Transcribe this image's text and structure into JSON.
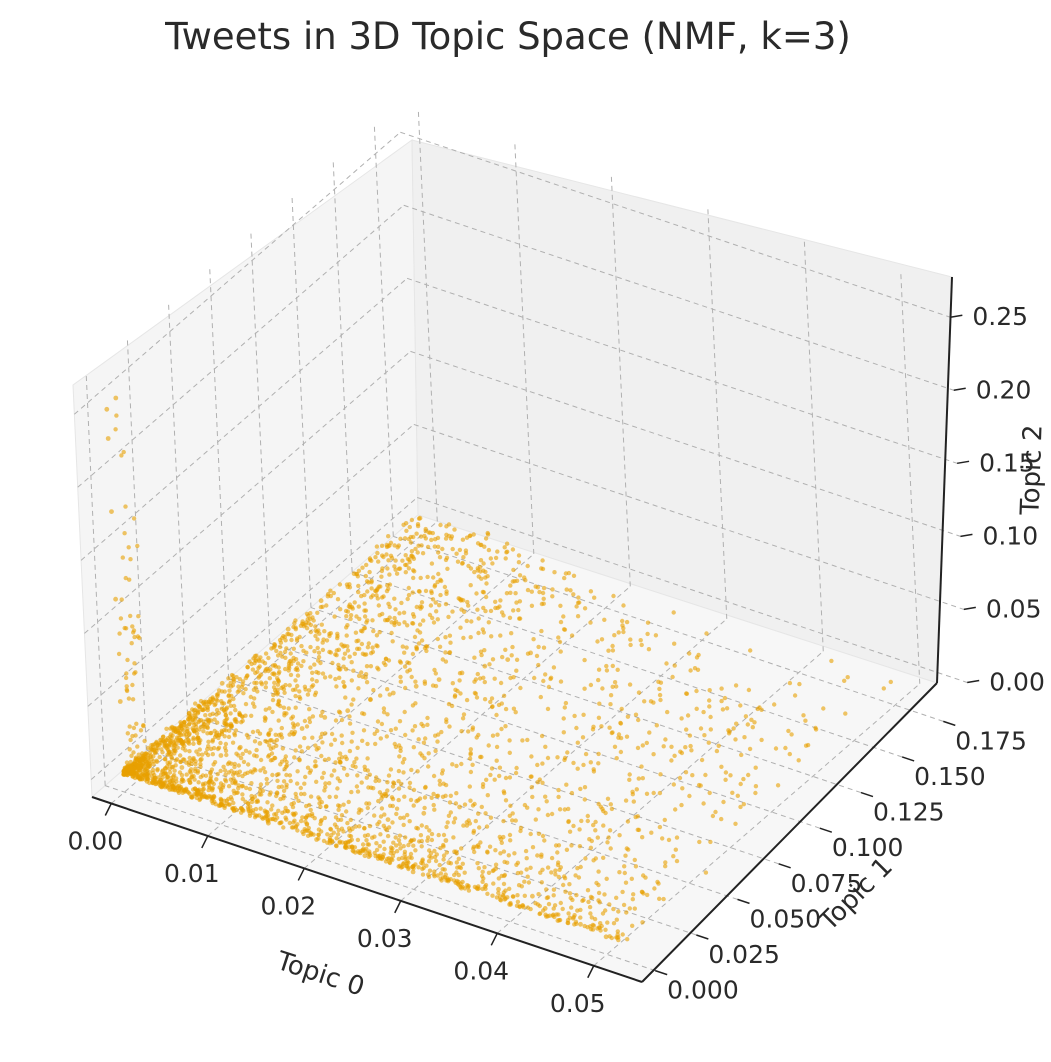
{
  "chart_data": {
    "type": "scatter",
    "projection": "3d",
    "title": "Tweets in 3D Topic Space (NMF, k=3)",
    "xlabel": "Topic 0",
    "ylabel": "Topic 1",
    "zlabel": "Topic 2",
    "xlim": [
      -0.002,
      0.055
    ],
    "ylim": [
      -0.008,
      0.19
    ],
    "zlim": [
      -0.012,
      0.27
    ],
    "x_ticks": [
      0.0,
      0.01,
      0.02,
      0.03,
      0.04,
      0.05
    ],
    "x_tick_labels": [
      "0.00",
      "0.01",
      "0.02",
      "0.03",
      "0.04",
      "0.05"
    ],
    "y_ticks": [
      0.0,
      0.025,
      0.05,
      0.075,
      0.1,
      0.125,
      0.15,
      0.175
    ],
    "y_tick_labels": [
      "0.000",
      "0.025",
      "0.050",
      "0.075",
      "0.100",
      "0.125",
      "0.150",
      "0.175"
    ],
    "z_ticks": [
      0.0,
      0.05,
      0.1,
      0.15,
      0.2,
      0.25
    ],
    "z_tick_labels": [
      "0.00",
      "0.05",
      "0.10",
      "0.15",
      "0.20",
      "0.25"
    ],
    "grid": true,
    "grid_style": "dashed",
    "marker_color": "#E8A000",
    "marker_alpha": 0.6,
    "pane_colors": {
      "left": "#f5f5f5",
      "back": "#f0f0f0",
      "floor": "#f7f7f7"
    },
    "series": [
      {
        "description_of_shape": "dense wedge of points near origin spreading along Topic 0 and Topic 1, with a sparse spike along Topic 2",
        "points": [
          [
            0.0,
            0.0,
            0.0
          ],
          [
            0.001,
            0.002,
            0.001
          ],
          [
            0.002,
            0.004,
            0.002
          ],
          [
            0.003,
            0.008,
            0.003
          ],
          [
            0.004,
            0.012,
            0.002
          ],
          [
            0.005,
            0.018,
            0.004
          ],
          [
            0.006,
            0.024,
            0.003
          ],
          [
            0.007,
            0.03,
            0.005
          ],
          [
            0.008,
            0.036,
            0.004
          ],
          [
            0.009,
            0.042,
            0.006
          ],
          [
            0.01,
            0.05,
            0.005
          ],
          [
            0.011,
            0.058,
            0.007
          ],
          [
            0.012,
            0.066,
            0.006
          ],
          [
            0.013,
            0.074,
            0.008
          ],
          [
            0.014,
            0.082,
            0.007
          ],
          [
            0.015,
            0.09,
            0.006
          ],
          [
            0.016,
            0.098,
            0.005
          ],
          [
            0.017,
            0.106,
            0.004
          ],
          [
            0.018,
            0.114,
            0.003
          ],
          [
            0.019,
            0.122,
            0.002
          ],
          [
            0.02,
            0.13,
            0.001
          ],
          [
            0.0,
            0.02,
            0.002
          ],
          [
            0.0,
            0.04,
            0.003
          ],
          [
            0.0,
            0.06,
            0.004
          ],
          [
            0.0,
            0.08,
            0.003
          ],
          [
            0.0,
            0.1,
            0.002
          ],
          [
            0.0,
            0.12,
            0.002
          ],
          [
            0.0,
            0.14,
            0.001
          ],
          [
            0.0,
            0.16,
            0.001
          ],
          [
            0.0,
            0.18,
            0.0
          ],
          [
            0.005,
            0.0,
            0.001
          ],
          [
            0.01,
            0.0,
            0.001
          ],
          [
            0.015,
            0.0,
            0.0
          ],
          [
            0.02,
            0.0,
            0.0
          ],
          [
            0.025,
            0.0,
            0.0
          ],
          [
            0.03,
            0.0,
            0.0
          ],
          [
            0.035,
            0.0,
            0.0
          ],
          [
            0.04,
            0.0,
            0.0
          ],
          [
            0.045,
            0.0,
            0.0
          ],
          [
            0.05,
            0.0,
            0.0
          ],
          [
            0.022,
            0.01,
            0.002
          ],
          [
            0.024,
            0.02,
            0.003
          ],
          [
            0.026,
            0.03,
            0.002
          ],
          [
            0.028,
            0.04,
            0.001
          ],
          [
            0.03,
            0.02,
            0.002
          ],
          [
            0.032,
            0.01,
            0.001
          ],
          [
            0.034,
            0.03,
            0.002
          ],
          [
            0.036,
            0.015,
            0.001
          ],
          [
            0.038,
            0.005,
            0.001
          ],
          [
            0.041,
            0.008,
            0.0
          ],
          [
            0.043,
            0.004,
            0.0
          ],
          [
            0.047,
            0.002,
            0.0
          ],
          [
            0.0,
            0.0,
            0.05
          ],
          [
            0.0,
            0.0,
            0.12
          ],
          [
            0.0,
            0.0,
            0.18
          ],
          [
            0.0,
            0.0,
            0.23
          ],
          [
            0.0,
            0.0,
            0.25
          ],
          [
            0.001,
            0.0,
            0.26
          ]
        ]
      }
    ]
  }
}
